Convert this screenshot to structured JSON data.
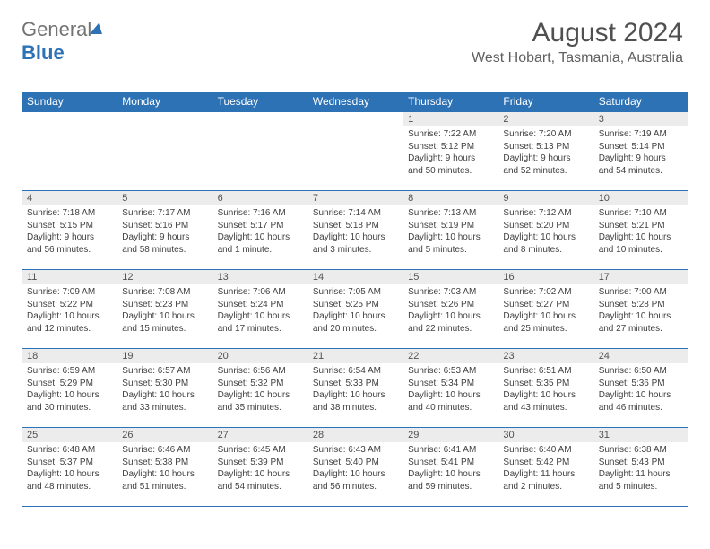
{
  "brand": {
    "general": "General",
    "blue": "Blue"
  },
  "header": {
    "month_year": "August 2024",
    "location": "West Hobart, Tasmania, Australia"
  },
  "colors": {
    "header_bg": "#2d72b5",
    "header_fg": "#ffffff",
    "daynum_bg": "#ececec",
    "border": "#2d72b5",
    "text": "#404040"
  },
  "days_of_week": [
    "Sunday",
    "Monday",
    "Tuesday",
    "Wednesday",
    "Thursday",
    "Friday",
    "Saturday"
  ],
  "weeks": [
    [
      {
        "n": "",
        "sr": "",
        "ss": "",
        "dl": ""
      },
      {
        "n": "",
        "sr": "",
        "ss": "",
        "dl": ""
      },
      {
        "n": "",
        "sr": "",
        "ss": "",
        "dl": ""
      },
      {
        "n": "",
        "sr": "",
        "ss": "",
        "dl": ""
      },
      {
        "n": "1",
        "sr": "Sunrise: 7:22 AM",
        "ss": "Sunset: 5:12 PM",
        "dl": "Daylight: 9 hours and 50 minutes."
      },
      {
        "n": "2",
        "sr": "Sunrise: 7:20 AM",
        "ss": "Sunset: 5:13 PM",
        "dl": "Daylight: 9 hours and 52 minutes."
      },
      {
        "n": "3",
        "sr": "Sunrise: 7:19 AM",
        "ss": "Sunset: 5:14 PM",
        "dl": "Daylight: 9 hours and 54 minutes."
      }
    ],
    [
      {
        "n": "4",
        "sr": "Sunrise: 7:18 AM",
        "ss": "Sunset: 5:15 PM",
        "dl": "Daylight: 9 hours and 56 minutes."
      },
      {
        "n": "5",
        "sr": "Sunrise: 7:17 AM",
        "ss": "Sunset: 5:16 PM",
        "dl": "Daylight: 9 hours and 58 minutes."
      },
      {
        "n": "6",
        "sr": "Sunrise: 7:16 AM",
        "ss": "Sunset: 5:17 PM",
        "dl": "Daylight: 10 hours and 1 minute."
      },
      {
        "n": "7",
        "sr": "Sunrise: 7:14 AM",
        "ss": "Sunset: 5:18 PM",
        "dl": "Daylight: 10 hours and 3 minutes."
      },
      {
        "n": "8",
        "sr": "Sunrise: 7:13 AM",
        "ss": "Sunset: 5:19 PM",
        "dl": "Daylight: 10 hours and 5 minutes."
      },
      {
        "n": "9",
        "sr": "Sunrise: 7:12 AM",
        "ss": "Sunset: 5:20 PM",
        "dl": "Daylight: 10 hours and 8 minutes."
      },
      {
        "n": "10",
        "sr": "Sunrise: 7:10 AM",
        "ss": "Sunset: 5:21 PM",
        "dl": "Daylight: 10 hours and 10 minutes."
      }
    ],
    [
      {
        "n": "11",
        "sr": "Sunrise: 7:09 AM",
        "ss": "Sunset: 5:22 PM",
        "dl": "Daylight: 10 hours and 12 minutes."
      },
      {
        "n": "12",
        "sr": "Sunrise: 7:08 AM",
        "ss": "Sunset: 5:23 PM",
        "dl": "Daylight: 10 hours and 15 minutes."
      },
      {
        "n": "13",
        "sr": "Sunrise: 7:06 AM",
        "ss": "Sunset: 5:24 PM",
        "dl": "Daylight: 10 hours and 17 minutes."
      },
      {
        "n": "14",
        "sr": "Sunrise: 7:05 AM",
        "ss": "Sunset: 5:25 PM",
        "dl": "Daylight: 10 hours and 20 minutes."
      },
      {
        "n": "15",
        "sr": "Sunrise: 7:03 AM",
        "ss": "Sunset: 5:26 PM",
        "dl": "Daylight: 10 hours and 22 minutes."
      },
      {
        "n": "16",
        "sr": "Sunrise: 7:02 AM",
        "ss": "Sunset: 5:27 PM",
        "dl": "Daylight: 10 hours and 25 minutes."
      },
      {
        "n": "17",
        "sr": "Sunrise: 7:00 AM",
        "ss": "Sunset: 5:28 PM",
        "dl": "Daylight: 10 hours and 27 minutes."
      }
    ],
    [
      {
        "n": "18",
        "sr": "Sunrise: 6:59 AM",
        "ss": "Sunset: 5:29 PM",
        "dl": "Daylight: 10 hours and 30 minutes."
      },
      {
        "n": "19",
        "sr": "Sunrise: 6:57 AM",
        "ss": "Sunset: 5:30 PM",
        "dl": "Daylight: 10 hours and 33 minutes."
      },
      {
        "n": "20",
        "sr": "Sunrise: 6:56 AM",
        "ss": "Sunset: 5:32 PM",
        "dl": "Daylight: 10 hours and 35 minutes."
      },
      {
        "n": "21",
        "sr": "Sunrise: 6:54 AM",
        "ss": "Sunset: 5:33 PM",
        "dl": "Daylight: 10 hours and 38 minutes."
      },
      {
        "n": "22",
        "sr": "Sunrise: 6:53 AM",
        "ss": "Sunset: 5:34 PM",
        "dl": "Daylight: 10 hours and 40 minutes."
      },
      {
        "n": "23",
        "sr": "Sunrise: 6:51 AM",
        "ss": "Sunset: 5:35 PM",
        "dl": "Daylight: 10 hours and 43 minutes."
      },
      {
        "n": "24",
        "sr": "Sunrise: 6:50 AM",
        "ss": "Sunset: 5:36 PM",
        "dl": "Daylight: 10 hours and 46 minutes."
      }
    ],
    [
      {
        "n": "25",
        "sr": "Sunrise: 6:48 AM",
        "ss": "Sunset: 5:37 PM",
        "dl": "Daylight: 10 hours and 48 minutes."
      },
      {
        "n": "26",
        "sr": "Sunrise: 6:46 AM",
        "ss": "Sunset: 5:38 PM",
        "dl": "Daylight: 10 hours and 51 minutes."
      },
      {
        "n": "27",
        "sr": "Sunrise: 6:45 AM",
        "ss": "Sunset: 5:39 PM",
        "dl": "Daylight: 10 hours and 54 minutes."
      },
      {
        "n": "28",
        "sr": "Sunrise: 6:43 AM",
        "ss": "Sunset: 5:40 PM",
        "dl": "Daylight: 10 hours and 56 minutes."
      },
      {
        "n": "29",
        "sr": "Sunrise: 6:41 AM",
        "ss": "Sunset: 5:41 PM",
        "dl": "Daylight: 10 hours and 59 minutes."
      },
      {
        "n": "30",
        "sr": "Sunrise: 6:40 AM",
        "ss": "Sunset: 5:42 PM",
        "dl": "Daylight: 11 hours and 2 minutes."
      },
      {
        "n": "31",
        "sr": "Sunrise: 6:38 AM",
        "ss": "Sunset: 5:43 PM",
        "dl": "Daylight: 11 hours and 5 minutes."
      }
    ]
  ]
}
